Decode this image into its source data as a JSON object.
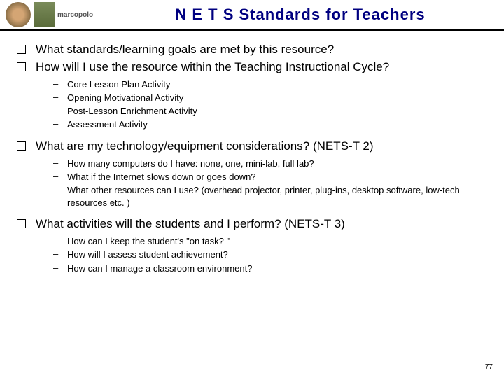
{
  "header": {
    "logo_text": "marcopolo",
    "title": "N E T S Standards for Teachers"
  },
  "questions": [
    {
      "text": "What standards/learning goals are met by this resource?",
      "subs": []
    },
    {
      "text": "How will I use the resource within the Teaching Instructional Cycle?",
      "subs": [
        "Core Lesson Plan Activity",
        "Opening Motivational Activity",
        "Post-Lesson Enrichment Activity",
        "Assessment Activity"
      ]
    },
    {
      "text": "What are my technology/equipment considerations? (NETS-T 2)",
      "subs": [
        "How many computers do I have:  none, one, mini-lab, full lab?",
        "What if the Internet slows down or goes down?",
        "What other resources can I use?  (overhead projector, printer, plug-ins, desktop software, low-tech resources etc. )"
      ]
    },
    {
      "text": "What activities will the students and I perform? (NETS-T 3)",
      "subs": [
        "How can I keep the student's \"on task? \"",
        "How will I assess student achievement?",
        "How can I manage a classroom environment?"
      ]
    }
  ],
  "page_number": "77",
  "colors": {
    "title": "#000080",
    "text": "#000000",
    "border": "#000000"
  }
}
